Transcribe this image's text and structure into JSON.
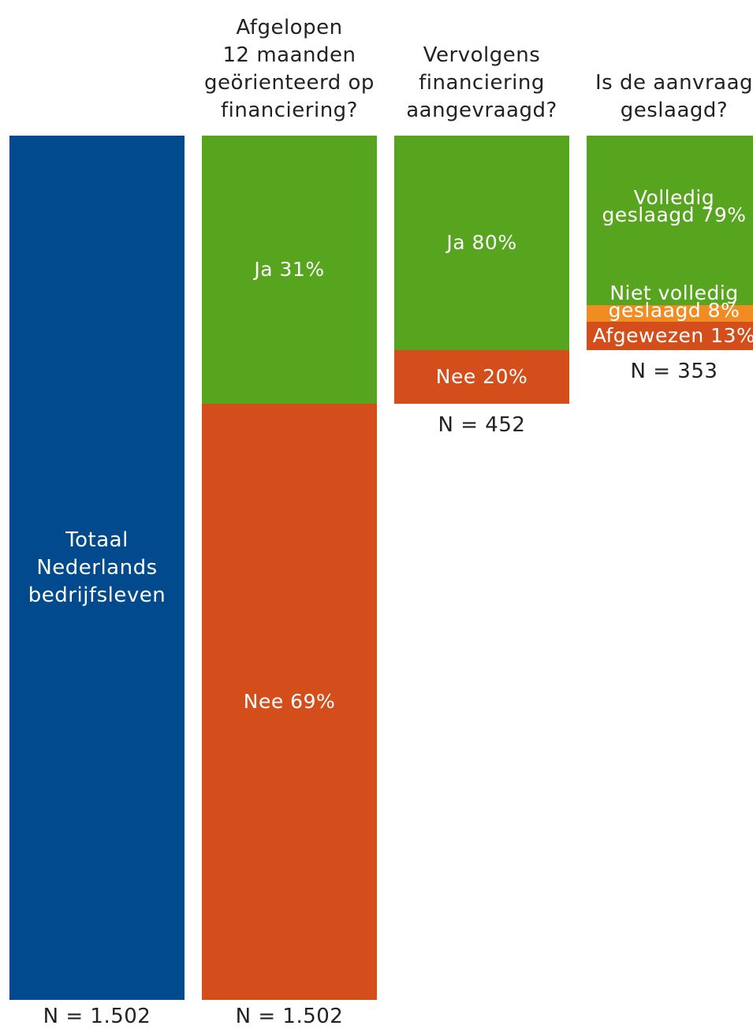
{
  "colors": {
    "blue": "#004A8D",
    "green": "#57A51E",
    "red": "#D44E1B",
    "orange": "#F08C22",
    "text": "#222222",
    "label_text": "#ffffff"
  },
  "chart_data": {
    "type": "bar",
    "columns": [
      {
        "title_lines": [],
        "n": "N = 1.502",
        "segments": [
          {
            "label_lines": [
              "Totaal",
              "Nederlands",
              "bedrijfsleven"
            ],
            "value": 100,
            "color": "blue"
          }
        ]
      },
      {
        "title_lines": [
          "Afgelopen",
          "12 maanden",
          "geörienteerd op",
          "financiering?"
        ],
        "n": "N = 1.502",
        "segments": [
          {
            "label_lines": [
              "Ja 31%"
            ],
            "value": 31,
            "color": "green"
          },
          {
            "label_lines": [
              "Nee 69%"
            ],
            "value": 69,
            "color": "red"
          }
        ]
      },
      {
        "title_lines": [
          "Vervolgens",
          "financiering",
          "aangevraagd?"
        ],
        "n": "N = 452",
        "segments": [
          {
            "label_lines": [
              "Ja 80%"
            ],
            "value": 80,
            "color": "green"
          },
          {
            "label_lines": [
              "Nee 20%"
            ],
            "value": 20,
            "color": "red"
          }
        ]
      },
      {
        "title_lines": [
          "Is de aanvraag",
          "geslaagd?"
        ],
        "n": "N = 353",
        "segments": [
          {
            "label_lines": [
              "Volledig",
              "geslaagd 79%"
            ],
            "value": 79,
            "color": "green"
          },
          {
            "label_lines": [
              "Niet volledig",
              "geslaagd 8%"
            ],
            "value": 8,
            "color": "orange"
          },
          {
            "label_lines": [
              "Afgewezen 13%"
            ],
            "value": 13,
            "color": "red"
          }
        ]
      }
    ]
  }
}
